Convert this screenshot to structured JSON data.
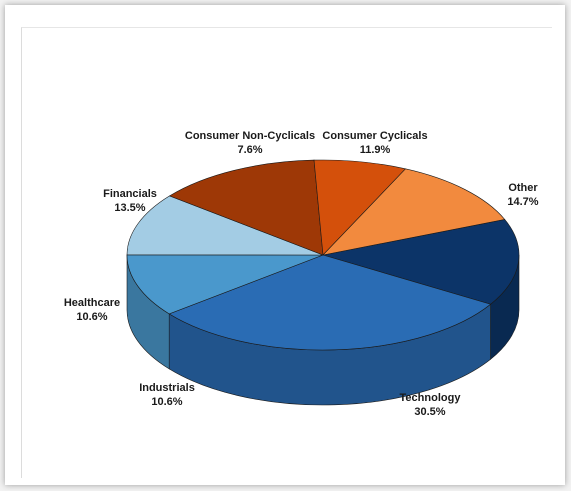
{
  "chart_data": {
    "type": "pie",
    "style": "3d",
    "slices": [
      {
        "label": "Other",
        "value_text": "14.7%",
        "value": 14.7,
        "color": "#0c3468"
      },
      {
        "label": "Technology",
        "value_text": "30.5%",
        "value": 30.5,
        "color": "#2a6cb4"
      },
      {
        "label": "Industrials",
        "value_text": "10.6%",
        "value": 10.6,
        "color": "#4a98cc"
      },
      {
        "label": "Healthcare",
        "value_text": "10.6%",
        "value": 10.6,
        "color": "#a3cce4"
      },
      {
        "label": "Financials",
        "value_text": "13.5%",
        "value": 13.5,
        "color": "#9e3806"
      },
      {
        "label": "Consumer Non-Cyclicals",
        "value_text": "7.6%",
        "value": 7.6,
        "color": "#d4500b"
      },
      {
        "label": "Consumer Cyclicals",
        "value_text": "11.9%",
        "value": 11.9,
        "color": "#f28a3e"
      }
    ]
  }
}
